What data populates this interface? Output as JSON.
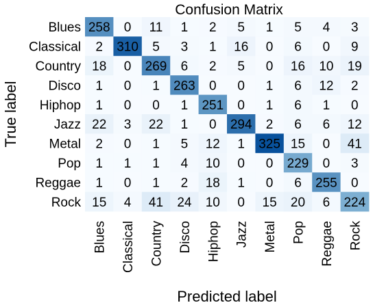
{
  "chart_data": {
    "type": "heatmap",
    "title": "Confusion Matrix",
    "xlabel": "Predicted label",
    "ylabel": "True label",
    "x_categories": [
      "Blues",
      "Classical",
      "Country",
      "Disco",
      "Hiphop",
      "Jazz",
      "Metal",
      "Pop",
      "Reggae",
      "Rock"
    ],
    "y_categories": [
      "Blues",
      "Classical",
      "Country",
      "Disco",
      "Hiphop",
      "Jazz",
      "Metal",
      "Pop",
      "Reggae",
      "Rock"
    ],
    "values": [
      [
        258,
        0,
        11,
        1,
        2,
        5,
        1,
        5,
        4,
        3
      ],
      [
        2,
        310,
        5,
        3,
        1,
        16,
        0,
        6,
        0,
        9
      ],
      [
        18,
        0,
        269,
        6,
        2,
        5,
        0,
        16,
        10,
        19
      ],
      [
        1,
        0,
        1,
        263,
        0,
        0,
        1,
        6,
        12,
        2
      ],
      [
        1,
        0,
        0,
        1,
        251,
        0,
        1,
        6,
        1,
        0
      ],
      [
        22,
        3,
        22,
        1,
        0,
        294,
        2,
        6,
        6,
        12
      ],
      [
        2,
        0,
        1,
        5,
        12,
        1,
        325,
        15,
        0,
        41
      ],
      [
        1,
        1,
        1,
        4,
        10,
        0,
        0,
        229,
        0,
        3
      ],
      [
        1,
        0,
        1,
        2,
        18,
        1,
        0,
        6,
        255,
        0
      ],
      [
        15,
        4,
        41,
        24,
        10,
        0,
        15,
        20,
        6,
        224
      ]
    ],
    "colormap": {
      "low": "#f7fbff",
      "mid": "#9ecae1",
      "high": "#08519c"
    }
  }
}
